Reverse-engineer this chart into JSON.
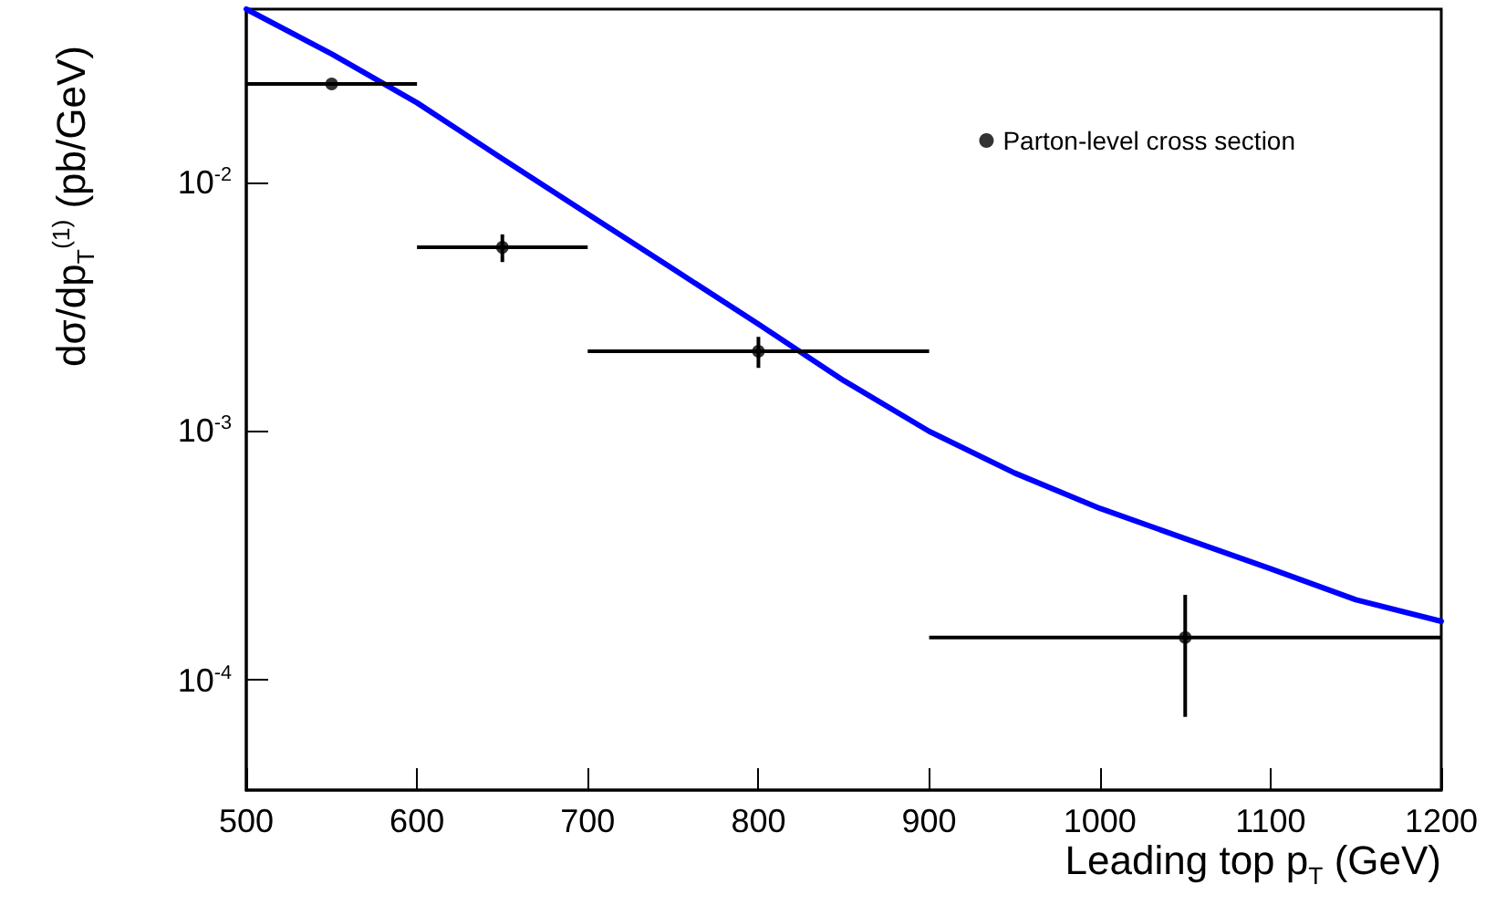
{
  "chart_data": {
    "type": "scatter",
    "xlabel": "Leading top p$_{T}$ (GeV)",
    "ylabel": "dσ/dp$_{T}$$^{(1)}$ (pb/GeV)",
    "log": "y",
    "xlim": [
      500,
      1200
    ],
    "ylim": [
      3.6e-05,
      0.05
    ],
    "xticks": [
      500,
      600,
      700,
      800,
      900,
      1000,
      1100,
      1200
    ],
    "yticks": [
      {
        "value": 0.0001,
        "label": "10$^{-4}$"
      },
      {
        "value": 0.001,
        "label": "10$^{-3}$"
      },
      {
        "value": 0.01,
        "label": "10$^{-2}$"
      }
    ],
    "grid": false,
    "legend": "top right",
    "series": [
      {
        "name": "Parton-level cross section",
        "color": "#000000",
        "marker": "circle",
        "x": [
          550,
          650,
          800,
          1050
        ],
        "values": [
          0.025,
          0.0055,
          0.0021,
          0.000148
        ],
        "errors": [
          null,
          [
            0.0048,
            0.0062
          ],
          [
            0.0018,
            0.0024
          ],
          [
            7.1e-05,
            0.00022
          ]
        ],
        "xerrors": [
          [
            500,
            600
          ],
          [
            600,
            700
          ],
          [
            700,
            900
          ],
          [
            900,
            1200
          ]
        ]
      },
      {
        "type": "line",
        "color": "#0000ff",
        "marker": "none",
        "x": [
          500,
          550,
          600,
          650,
          700,
          750,
          800,
          850,
          900,
          950,
          1000,
          1050,
          1100,
          1150,
          1200
        ],
        "values": [
          0.05,
          0.033,
          0.021,
          0.0125,
          0.0075,
          0.0045,
          0.0027,
          0.0016,
          0.001,
          0.00068,
          0.00049,
          0.00037,
          0.00028,
          0.00021,
          0.000172
        ]
      }
    ]
  }
}
